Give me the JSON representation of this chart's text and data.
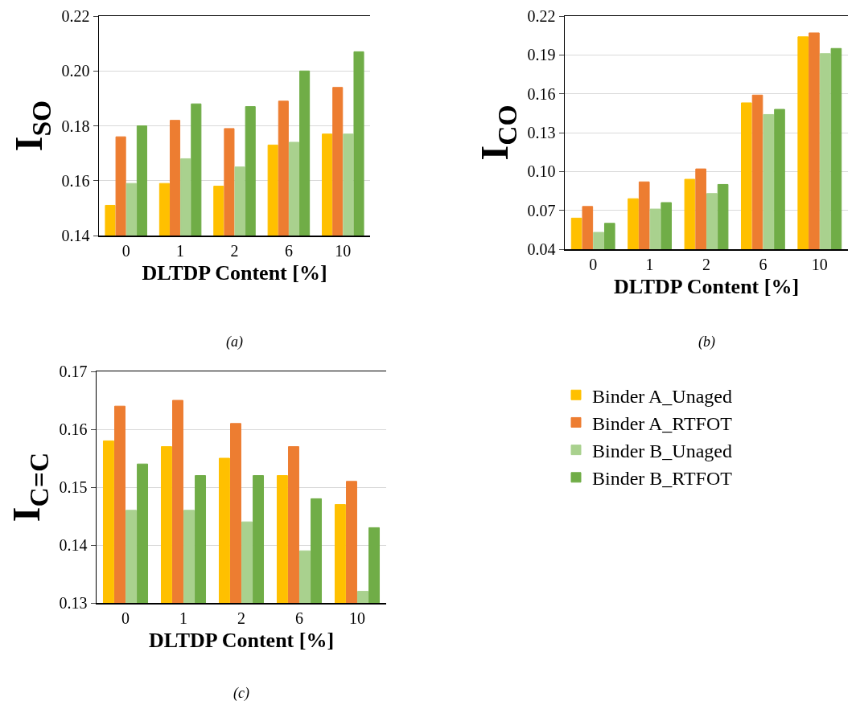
{
  "chart_data": [
    {
      "type": "bar",
      "ylabel": "I$_{SO}$",
      "xlabel": "DLTDP Content [%]",
      "annotations": [
        "(a)"
      ],
      "categories": [
        "0",
        "1",
        "2",
        "6",
        "10"
      ],
      "ylim": [
        0.14,
        0.22
      ],
      "yticks": [
        {
          "value": 0.14,
          "label": "0.14"
        },
        {
          "value": 0.16,
          "label": "0.16"
        },
        {
          "value": 0.18,
          "label": "0.18"
        },
        {
          "value": 0.2,
          "label": "0.20"
        },
        {
          "value": 0.22,
          "label": "0.22"
        }
      ],
      "grid": "y",
      "legend": false,
      "series": [
        {
          "color": "#ffc000",
          "values": [
            0.151,
            0.159,
            0.158,
            0.173,
            0.177
          ]
        },
        {
          "color": "#ed7d31",
          "values": [
            0.176,
            0.182,
            0.179,
            0.189,
            0.194
          ]
        },
        {
          "color": "#a9d18e",
          "values": [
            0.159,
            0.168,
            0.165,
            0.174,
            0.177
          ]
        },
        {
          "color": "#70ad47",
          "values": [
            0.18,
            0.188,
            0.187,
            0.2,
            0.207
          ]
        }
      ]
    },
    {
      "type": "bar",
      "ylabel": "I$_{CO}$",
      "xlabel": "DLTDP Content [%]",
      "annotations": [
        "(b)"
      ],
      "categories": [
        "0",
        "1",
        "2",
        "6",
        "10"
      ],
      "ylim": [
        0.04,
        0.22
      ],
      "yticks": [
        {
          "value": 0.04,
          "label": "0.04"
        },
        {
          "value": 0.07,
          "label": "0.07"
        },
        {
          "value": 0.1,
          "label": "0.10"
        },
        {
          "value": 0.13,
          "label": "0.13"
        },
        {
          "value": 0.16,
          "label": "0.16"
        },
        {
          "value": 0.19,
          "label": "0.19"
        },
        {
          "value": 0.22,
          "label": "0.22"
        }
      ],
      "grid": "y",
      "legend": false,
      "series": [
        {
          "color": "#ffc000",
          "values": [
            0.064,
            0.079,
            0.094,
            0.153,
            0.204
          ]
        },
        {
          "color": "#ed7d31",
          "values": [
            0.073,
            0.092,
            0.102,
            0.159,
            0.207
          ]
        },
        {
          "color": "#a9d18e",
          "values": [
            0.053,
            0.071,
            0.083,
            0.144,
            0.191
          ]
        },
        {
          "color": "#70ad47",
          "values": [
            0.06,
            0.076,
            0.09,
            0.148,
            0.195
          ]
        }
      ]
    },
    {
      "type": "bar",
      "ylabel": "I$_{C=C}$",
      "xlabel": "DLTDP Content [%]",
      "annotations": [
        "(c)"
      ],
      "categories": [
        "0",
        "1",
        "2",
        "6",
        "10"
      ],
      "ylim": [
        0.13,
        0.17
      ],
      "yticks": [
        {
          "value": 0.13,
          "label": "0.13"
        },
        {
          "value": 0.14,
          "label": "0.14"
        },
        {
          "value": 0.15,
          "label": "0.15"
        },
        {
          "value": 0.16,
          "label": "0.16"
        },
        {
          "value": 0.17,
          "label": "0.17"
        }
      ],
      "grid": "y",
      "legend": "right",
      "series": [
        {
          "name": "Binder A_Unaged",
          "color": "#ffc000",
          "values": [
            0.158,
            0.157,
            0.155,
            0.152,
            0.147
          ]
        },
        {
          "name": "Binder A_RTFOT",
          "color": "#ed7d31",
          "values": [
            0.164,
            0.165,
            0.161,
            0.157,
            0.151
          ]
        },
        {
          "name": "Binder B_Unaged",
          "color": "#a9d18e",
          "values": [
            0.146,
            0.146,
            0.144,
            0.139,
            0.132
          ]
        },
        {
          "name": "Binder B_RTFOT",
          "color": "#70ad47",
          "values": [
            0.154,
            0.152,
            0.152,
            0.148,
            0.143
          ]
        }
      ]
    }
  ]
}
